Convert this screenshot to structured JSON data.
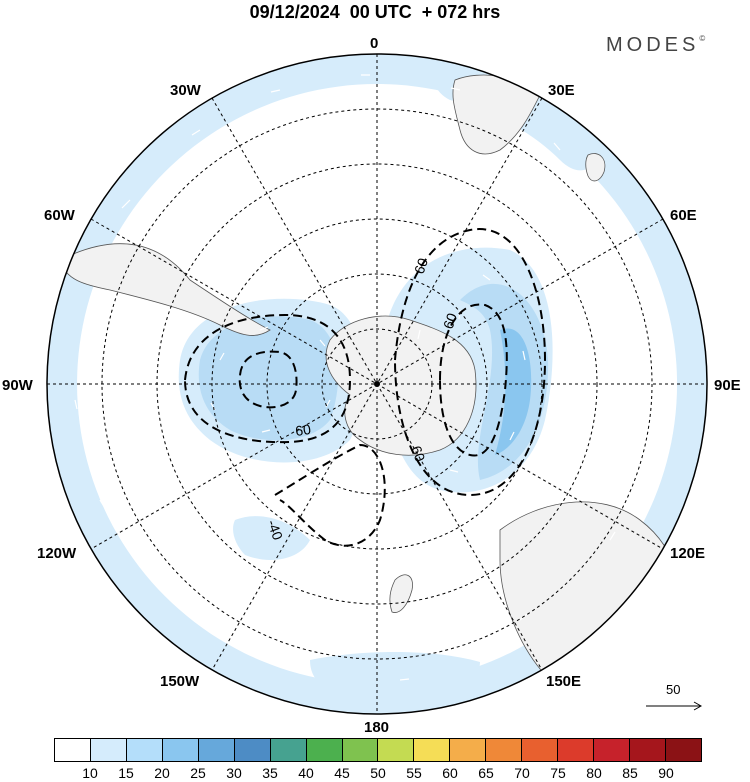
{
  "header": {
    "title": "09/12/2024  00 UTC  + 072 hrs",
    "brand": "MODES",
    "brand_mark": "©"
  },
  "map": {
    "projection": "south-polar-stereographic",
    "longitude_labels": [
      "0",
      "30E",
      "60E",
      "90E",
      "120E",
      "150E",
      "180",
      "150W",
      "120W",
      "90W",
      "60W",
      "30W"
    ],
    "contour_labels": [
      "60",
      "60",
      "60",
      "60",
      "-40"
    ],
    "contour_style": "dashed-black",
    "shading_field_colors": [
      "#d6ecfb",
      "#b8dcf5"
    ],
    "land_color": "#f2f2f2",
    "reference_vector_label": "50"
  },
  "colorbar": {
    "colors": [
      "#ffffff",
      "#d5ecfc",
      "#b4defa",
      "#8ac6ef",
      "#66a8db",
      "#4d8cc5",
      "#46a290",
      "#4cb04e",
      "#7fc24f",
      "#c4db52",
      "#f5dd56",
      "#f4ad4a",
      "#ef8838",
      "#e8602f",
      "#dc3b2b",
      "#c6222b",
      "#a5161c",
      "#8b1215"
    ],
    "tick_labels": [
      "10",
      "15",
      "20",
      "25",
      "30",
      "35",
      "40",
      "45",
      "50",
      "55",
      "60",
      "65",
      "70",
      "75",
      "80",
      "85",
      "90"
    ]
  }
}
